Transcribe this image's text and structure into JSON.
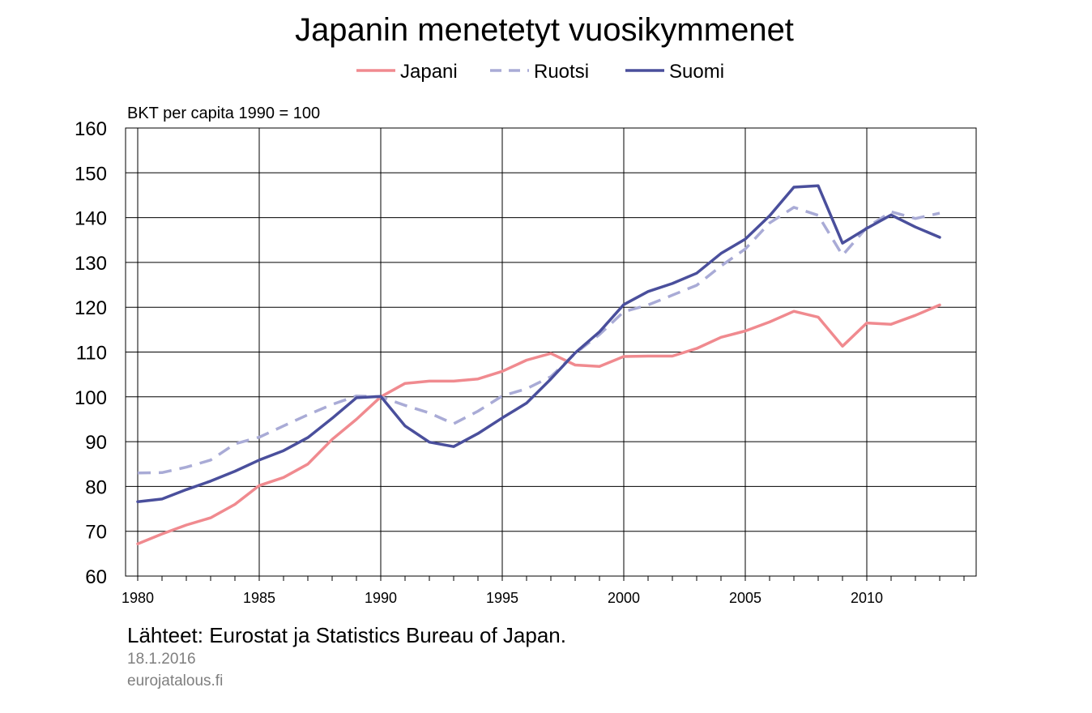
{
  "chart_data": {
    "type": "line",
    "title": "Japanin menetetyt vuosikymmenet",
    "ylabel": "BKT per capita 1990 = 100",
    "xlabel": "",
    "xlim": [
      1979.5,
      2014.5
    ],
    "ylim": [
      60,
      160
    ],
    "yticks": [
      60,
      70,
      80,
      90,
      100,
      110,
      120,
      130,
      140,
      150,
      160
    ],
    "xtick_labels": [
      "1980",
      "1985",
      "1990",
      "1995",
      "2000",
      "2005",
      "2010"
    ],
    "xtick_values": [
      1980,
      1985,
      1990,
      1995,
      2000,
      2005,
      2010
    ],
    "grid": true,
    "legend_position": "top",
    "x": [
      1980,
      1981,
      1982,
      1983,
      1984,
      1985,
      1986,
      1987,
      1988,
      1989,
      1990,
      1991,
      1992,
      1993,
      1994,
      1995,
      1996,
      1997,
      1998,
      1999,
      2000,
      2001,
      2002,
      2003,
      2004,
      2005,
      2006,
      2007,
      2008,
      2009,
      2010,
      2011,
      2012,
      2013
    ],
    "series": [
      {
        "name": "Japani",
        "color": "#f08a8f",
        "dash": "solid",
        "values": [
          67.2,
          69.4,
          71.4,
          73.0,
          76.0,
          80.2,
          82.0,
          85.0,
          90.5,
          95.0,
          100.0,
          103.0,
          103.5,
          103.5,
          104.0,
          105.7,
          108.2,
          109.7,
          107.1,
          106.8,
          109.0,
          109.1,
          109.1,
          110.8,
          113.3,
          114.7,
          116.7,
          119.1,
          117.8,
          111.3,
          116.5,
          116.2,
          118.2,
          120.5
        ]
      },
      {
        "name": "Ruotsi",
        "color": "#a9abd6",
        "dash": "dashed",
        "values": [
          83.0,
          83.1,
          84.3,
          85.9,
          89.5,
          91.0,
          93.5,
          96.0,
          98.3,
          100.2,
          100.0,
          98.1,
          96.4,
          94.0,
          96.8,
          100.2,
          101.8,
          104.5,
          109.7,
          113.9,
          119.0,
          120.5,
          122.7,
          124.9,
          129.2,
          133.0,
          138.8,
          142.3,
          140.5,
          131.6,
          137.8,
          141.3,
          139.8,
          141.0
        ]
      },
      {
        "name": "Suomi",
        "color": "#4a4f9c",
        "dash": "solid",
        "values": [
          76.6,
          77.2,
          79.3,
          81.2,
          83.4,
          85.9,
          88.0,
          90.9,
          95.2,
          99.8,
          100.1,
          93.5,
          89.9,
          88.9,
          91.8,
          95.3,
          98.6,
          104.0,
          109.8,
          114.5,
          120.6,
          123.5,
          125.3,
          127.6,
          132.0,
          135.2,
          140.4,
          146.8,
          147.1,
          134.3,
          137.6,
          140.6,
          137.9,
          135.6
        ]
      }
    ]
  },
  "source_text": "Lähteet: Eurostat ja Statistics Bureau of Japan.",
  "date_text": "18.1.2016",
  "site_text": "eurojatalous.fi"
}
